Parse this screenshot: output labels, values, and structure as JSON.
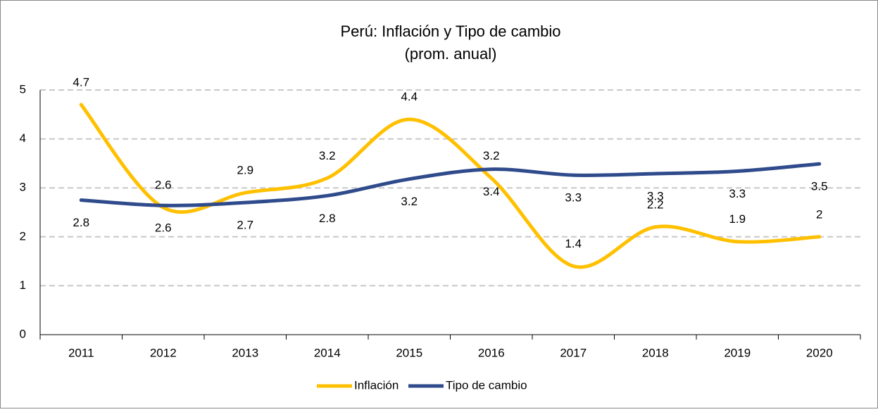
{
  "chart_data": {
    "type": "line",
    "title": "Perú: Inflación y Tipo de cambio",
    "subtitle": "(prom. anual)",
    "categories": [
      "2011",
      "2012",
      "2013",
      "2014",
      "2015",
      "2016",
      "2017",
      "2018",
      "2019",
      "2020"
    ],
    "series": [
      {
        "name": "Inflación",
        "color": "#ffc000",
        "values": [
          4.7,
          2.6,
          2.9,
          3.2,
          4.4,
          3.2,
          1.4,
          2.2,
          1.9,
          2
        ]
      },
      {
        "name": "Tipo de cambio",
        "color": "#2f4b8c",
        "values": [
          2.75,
          2.64,
          2.7,
          2.84,
          3.18,
          3.38,
          3.26,
          3.29,
          3.34,
          3.49
        ],
        "value_labels": [
          "2.8",
          "2.6",
          "2.7",
          "2.8",
          "3.2",
          "3.4",
          "3.3",
          "3.3",
          "3.3",
          "3.5"
        ]
      }
    ],
    "ylim": [
      0,
      5
    ],
    "yticks": [
      0,
      1,
      2,
      3,
      4,
      5
    ],
    "grid": true,
    "legend": "bottom"
  }
}
